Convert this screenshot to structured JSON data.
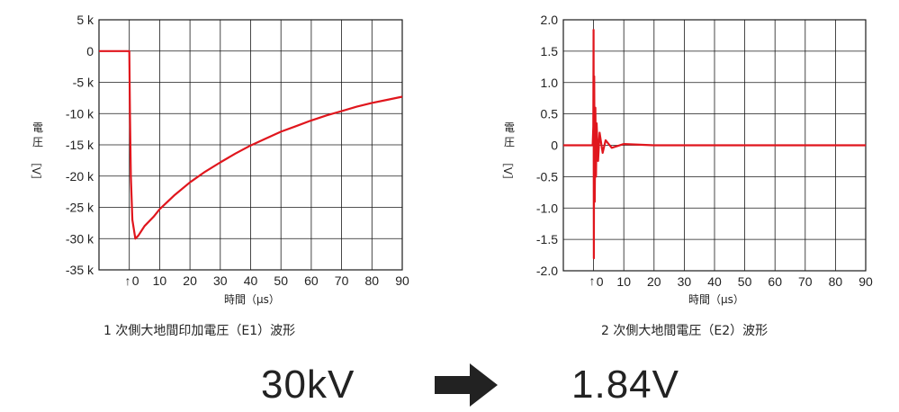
{
  "chart_data": [
    {
      "type": "line",
      "caption": "1 次側大地間印加電圧（E1）波形",
      "xlabel": "時間（μs）",
      "ylabel_chars": [
        "電",
        "圧",
        "［V］"
      ],
      "x_tick_labels": [
        "0",
        "10",
        "20",
        "30",
        "40",
        "50",
        "60",
        "70",
        "80",
        "90"
      ],
      "y_tick_labels": [
        "5 k",
        "0",
        "-5 k",
        "-10 k",
        "-15 k",
        "-20 k",
        "-25 k",
        "-30 k",
        "-35 k"
      ],
      "xlim": [
        -10,
        90
      ],
      "ylim": [
        -35000,
        5000
      ],
      "trigger_marker": "↑",
      "series_color": "#e0161d",
      "series": [
        {
          "x": [
            -10,
            -1,
            -0.5,
            0,
            0.2,
            0.5,
            1,
            2,
            3,
            5,
            8,
            10,
            15,
            20,
            25,
            30,
            35,
            40,
            45,
            50,
            55,
            60,
            65,
            70,
            75,
            80,
            85,
            90
          ],
          "y": [
            0,
            0,
            0,
            0,
            -10000,
            -20000,
            -27000,
            -30000,
            -29500,
            -28000,
            -26500,
            -25300,
            -23000,
            -21000,
            -19300,
            -17800,
            -16400,
            -15100,
            -14000,
            -12900,
            -12000,
            -11100,
            -10300,
            -9600,
            -8900,
            -8300,
            -7800,
            -7300
          ]
        }
      ]
    },
    {
      "type": "line",
      "caption": "2 次側大地間電圧（E2）波形",
      "xlabel": "時間（μs）",
      "ylabel_chars": [
        "電",
        "圧",
        "［V］"
      ],
      "x_tick_labels": [
        "0",
        "10",
        "20",
        "30",
        "40",
        "50",
        "60",
        "70",
        "80",
        "90"
      ],
      "y_tick_labels": [
        "2.0",
        "1.5",
        "1.0",
        "0.5",
        "0",
        "-0.5",
        "-1.0",
        "-1.5",
        "-2.0"
      ],
      "xlim": [
        -10,
        90
      ],
      "ylim": [
        -2.0,
        2.0
      ],
      "trigger_marker": "↑",
      "series_color": "#e0161d",
      "series": [
        {
          "x": [
            -10,
            -0.3,
            -0.1,
            0,
            0.1,
            0.2,
            0.4,
            0.6,
            0.8,
            1,
            1.5,
            2,
            3,
            4,
            6,
            10,
            20,
            30,
            40,
            50,
            60,
            70,
            80,
            90
          ],
          "y": [
            0,
            0,
            0.3,
            1.84,
            -1.8,
            1.1,
            -0.9,
            0.6,
            -0.5,
            0.35,
            -0.25,
            0.2,
            -0.12,
            0.08,
            -0.04,
            0.02,
            0,
            0,
            0,
            0,
            0,
            0,
            0,
            0
          ]
        }
      ]
    }
  ],
  "result": {
    "input_value": "30kV",
    "output_value": "1.84V"
  }
}
